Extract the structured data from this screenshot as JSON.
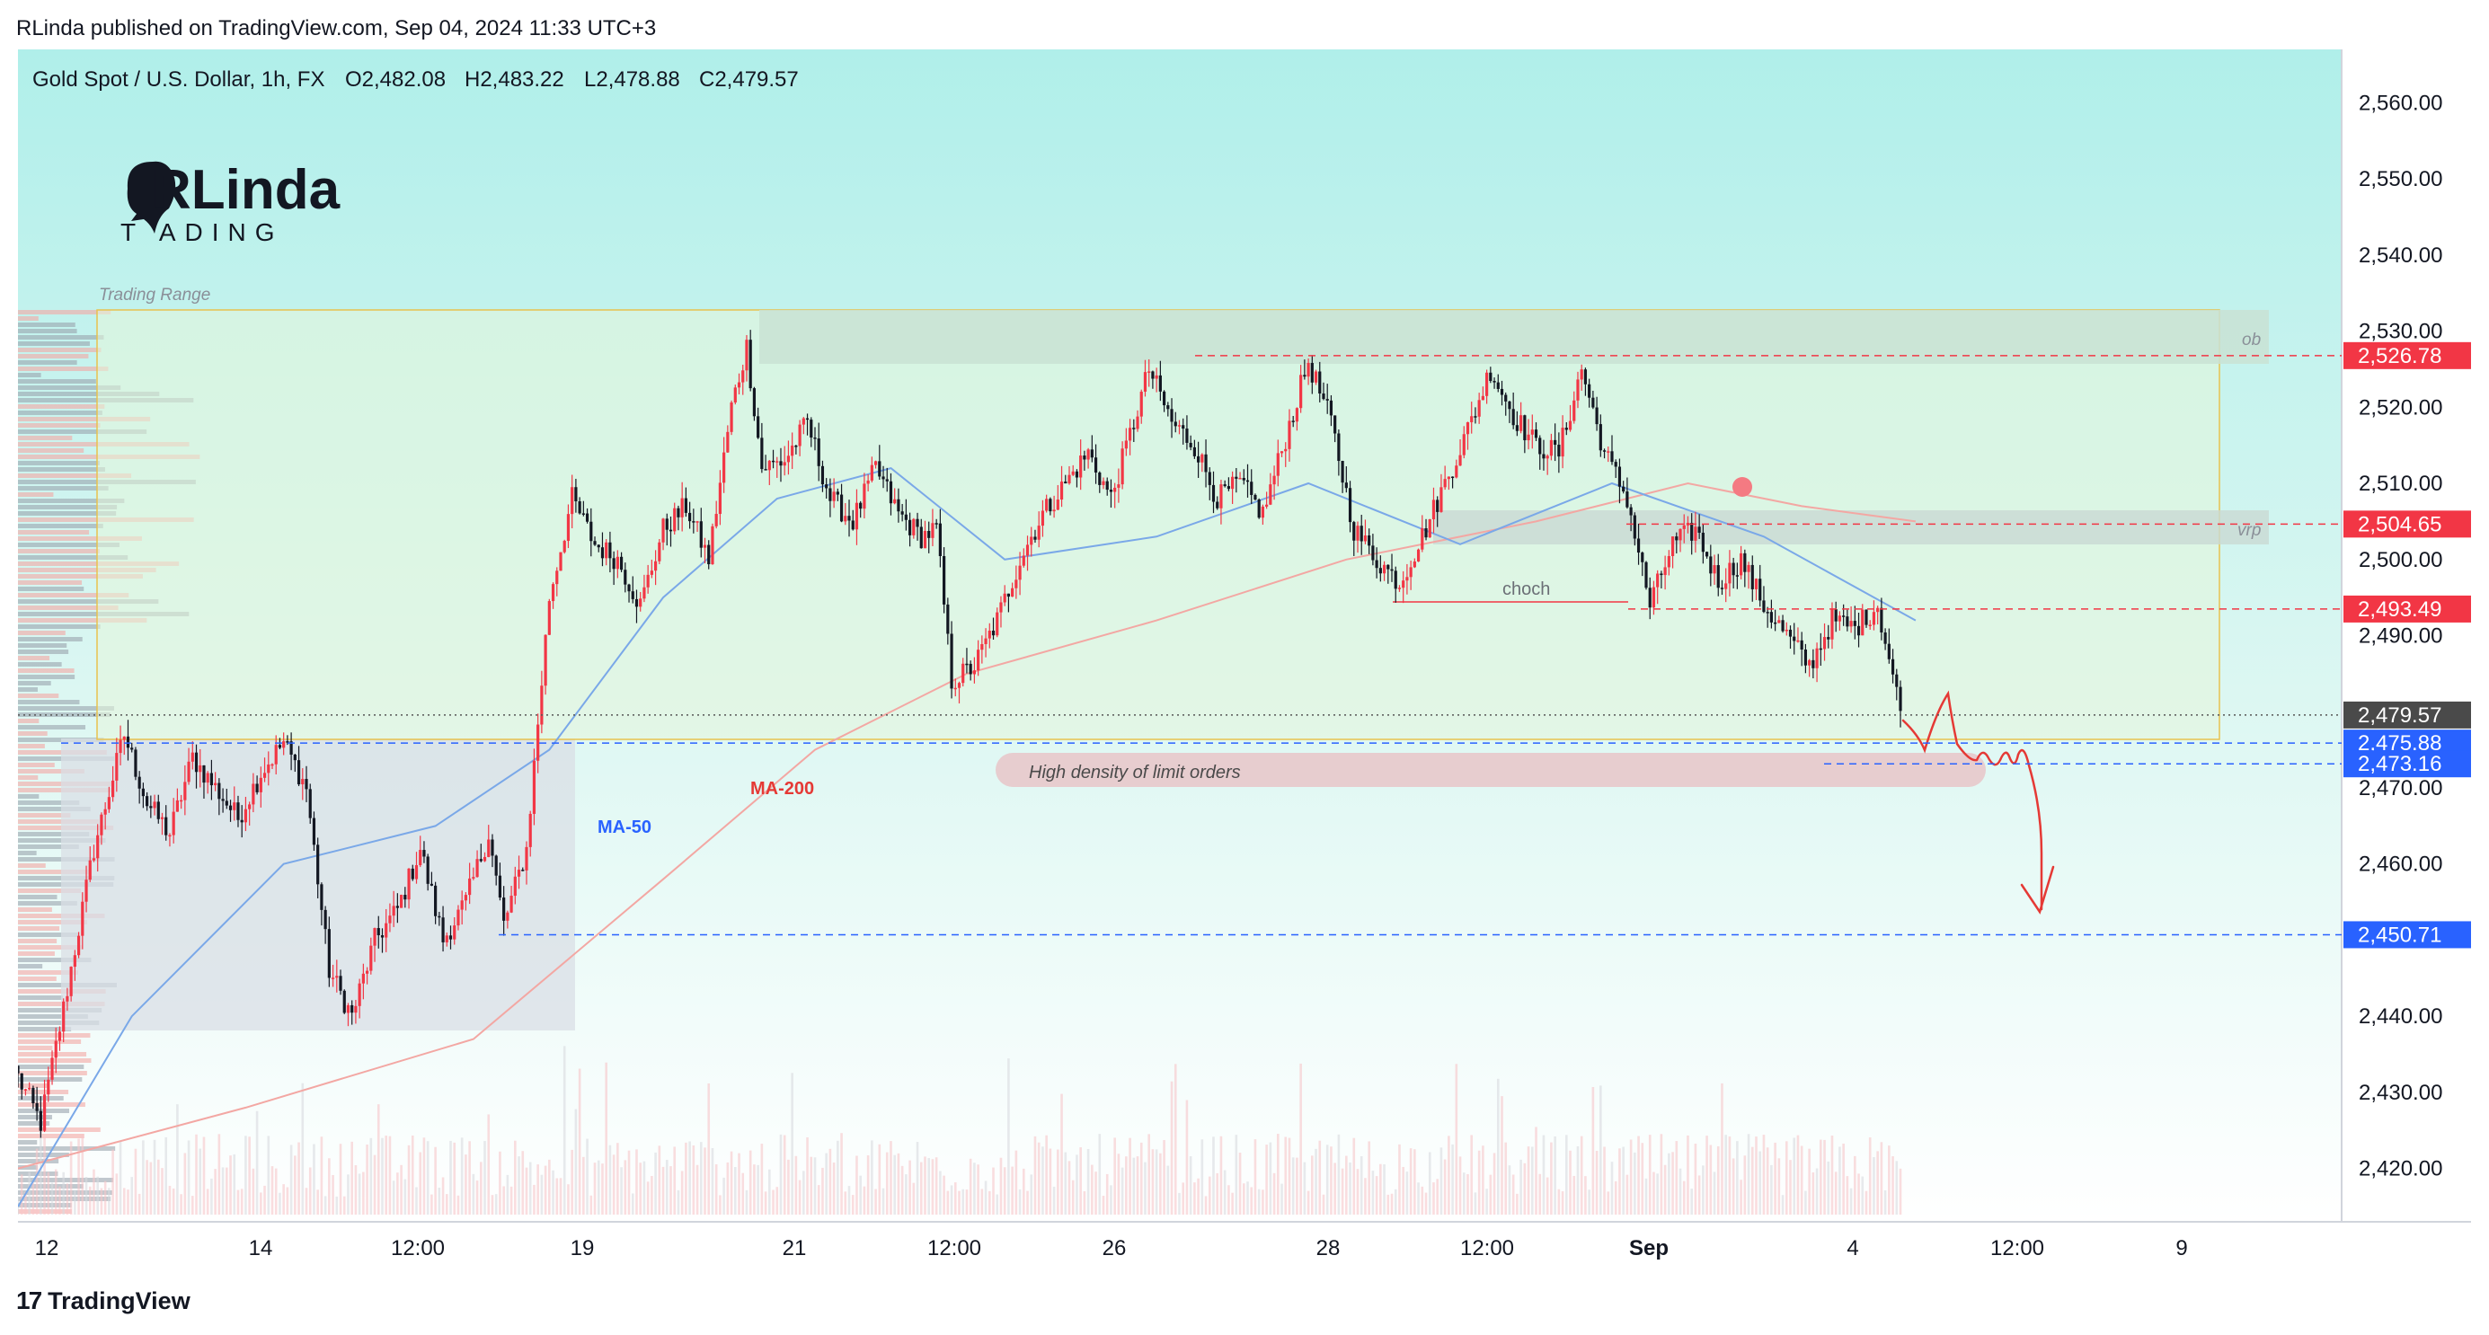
{
  "publisher_line": "RLinda published on TradingView.com, Sep 04, 2024 11:33 UTC+3",
  "symbol_line": {
    "name": "Gold Spot / U.S. Dollar, 1h, FX",
    "open": "O2,482.08",
    "high": "H2,483.22",
    "low": "L2,478.88",
    "close": "C2,479.57"
  },
  "logo": {
    "top": "RLinda",
    "bottom": "T  ADING"
  },
  "footer": {
    "brand": "TradingView"
  },
  "colors": {
    "bg_top": "#b0efea",
    "bg_bottom": "#ffffff",
    "range_fill": "#e6f6da",
    "range_border": "#e8c24f",
    "up": "#f23645",
    "down": "#131722",
    "ma50": "#7aa8e8",
    "ma200": "#f3a7a3",
    "label_red": "#f23645",
    "label_blue": "#2962ff",
    "label_dark": "#4a4a4a"
  },
  "annotations": {
    "trading_range": "Trading Range",
    "ob": "ob",
    "vrp": "vrp",
    "choch": "choch",
    "ma200": "MA-200",
    "ma50": "MA-50",
    "limit_orders": "High density of limit orders"
  },
  "chart_data": {
    "type": "candlestick",
    "instrument": "Gold Spot / U.S. Dollar",
    "timeframe": "1h",
    "ylim": [
      2413,
      2567
    ],
    "y_ticks": [
      "2,560.00",
      "2,550.00",
      "2,540.00",
      "2,530.00",
      "2,520.00",
      "2,510.00",
      "2,500.00",
      "2,490.00",
      "2,470.00",
      "2,460.00",
      "2,440.00",
      "2,430.00",
      "2,420.00"
    ],
    "y_tick_values": [
      2560,
      2550,
      2540,
      2530,
      2520,
      2510,
      2500,
      2490,
      2470,
      2460,
      2440,
      2430,
      2420
    ],
    "x_ticks": [
      "12",
      "14",
      "12:00",
      "19",
      "21",
      "12:00",
      "26",
      "28",
      "12:00",
      "Sep",
      "4",
      "12:00",
      "9"
    ],
    "price_labels": [
      {
        "value": 2526.78,
        "text": "2,526.78",
        "color": "#f23645"
      },
      {
        "value": 2504.65,
        "text": "2,504.65",
        "color": "#f23645"
      },
      {
        "value": 2493.49,
        "text": "2,493.49",
        "color": "#f23645"
      },
      {
        "value": 2479.57,
        "text": "2,479.57",
        "color": "#4a4a4a"
      },
      {
        "value": 2475.88,
        "text": "2,475.88",
        "color": "#2962ff"
      },
      {
        "value": 2473.16,
        "text": "2,473.16",
        "color": "#2962ff"
      },
      {
        "value": 2450.71,
        "text": "2,450.71",
        "color": "#2962ff"
      }
    ],
    "keypoints": [
      [
        0,
        2432
      ],
      [
        6,
        2426
      ],
      [
        12,
        2441
      ],
      [
        20,
        2462
      ],
      [
        28,
        2477
      ],
      [
        34,
        2468
      ],
      [
        40,
        2464
      ],
      [
        46,
        2474
      ],
      [
        52,
        2470
      ],
      [
        58,
        2466
      ],
      [
        64,
        2472
      ],
      [
        70,
        2476
      ],
      [
        76,
        2470
      ],
      [
        82,
        2446
      ],
      [
        88,
        2440
      ],
      [
        94,
        2450
      ],
      [
        100,
        2454
      ],
      [
        106,
        2462
      ],
      [
        112,
        2450
      ],
      [
        118,
        2455
      ],
      [
        124,
        2464
      ],
      [
        128,
        2452
      ],
      [
        134,
        2462
      ],
      [
        140,
        2495
      ],
      [
        146,
        2508
      ],
      [
        152,
        2502
      ],
      [
        158,
        2500
      ],
      [
        164,
        2494
      ],
      [
        170,
        2504
      ],
      [
        176,
        2507
      ],
      [
        182,
        2500
      ],
      [
        188,
        2520
      ],
      [
        192,
        2528
      ],
      [
        196,
        2512
      ],
      [
        202,
        2513
      ],
      [
        208,
        2518
      ],
      [
        214,
        2508
      ],
      [
        220,
        2505
      ],
      [
        226,
        2512
      ],
      [
        232,
        2506
      ],
      [
        238,
        2503
      ],
      [
        242,
        2504
      ],
      [
        246,
        2484
      ],
      [
        252,
        2486
      ],
      [
        258,
        2492
      ],
      [
        264,
        2500
      ],
      [
        270,
        2506
      ],
      [
        276,
        2510
      ],
      [
        282,
        2514
      ],
      [
        288,
        2508
      ],
      [
        294,
        2518
      ],
      [
        298,
        2525
      ],
      [
        304,
        2518
      ],
      [
        310,
        2515
      ],
      [
        316,
        2508
      ],
      [
        322,
        2510
      ],
      [
        328,
        2506
      ],
      [
        334,
        2516
      ],
      [
        340,
        2526
      ],
      [
        346,
        2518
      ],
      [
        352,
        2504
      ],
      [
        358,
        2500
      ],
      [
        364,
        2497
      ],
      [
        370,
        2503
      ],
      [
        376,
        2510
      ],
      [
        382,
        2517
      ],
      [
        388,
        2525
      ],
      [
        394,
        2519
      ],
      [
        400,
        2515
      ],
      [
        406,
        2514
      ],
      [
        412,
        2525
      ],
      [
        418,
        2514
      ],
      [
        424,
        2508
      ],
      [
        430,
        2494
      ],
      [
        436,
        2502
      ],
      [
        442,
        2504
      ],
      [
        448,
        2497
      ],
      [
        454,
        2500
      ],
      [
        460,
        2494
      ],
      [
        466,
        2490
      ],
      [
        472,
        2486
      ],
      [
        478,
        2492
      ],
      [
        484,
        2491
      ],
      [
        490,
        2494
      ],
      [
        496,
        2480
      ]
    ],
    "ma50": [
      [
        0,
        2415
      ],
      [
        30,
        2440
      ],
      [
        70,
        2460
      ],
      [
        110,
        2465
      ],
      [
        140,
        2475
      ],
      [
        170,
        2495
      ],
      [
        200,
        2508
      ],
      [
        230,
        2512
      ],
      [
        260,
        2500
      ],
      [
        300,
        2503
      ],
      [
        340,
        2510
      ],
      [
        380,
        2502
      ],
      [
        420,
        2510
      ],
      [
        460,
        2503
      ],
      [
        500,
        2492
      ]
    ],
    "ma200": [
      [
        0,
        2420
      ],
      [
        60,
        2428
      ],
      [
        120,
        2437
      ],
      [
        170,
        2458
      ],
      [
        210,
        2475
      ],
      [
        250,
        2485
      ],
      [
        300,
        2492
      ],
      [
        350,
        2500
      ],
      [
        400,
        2505
      ],
      [
        440,
        2510
      ],
      [
        470,
        2507
      ],
      [
        500,
        2505
      ]
    ]
  }
}
